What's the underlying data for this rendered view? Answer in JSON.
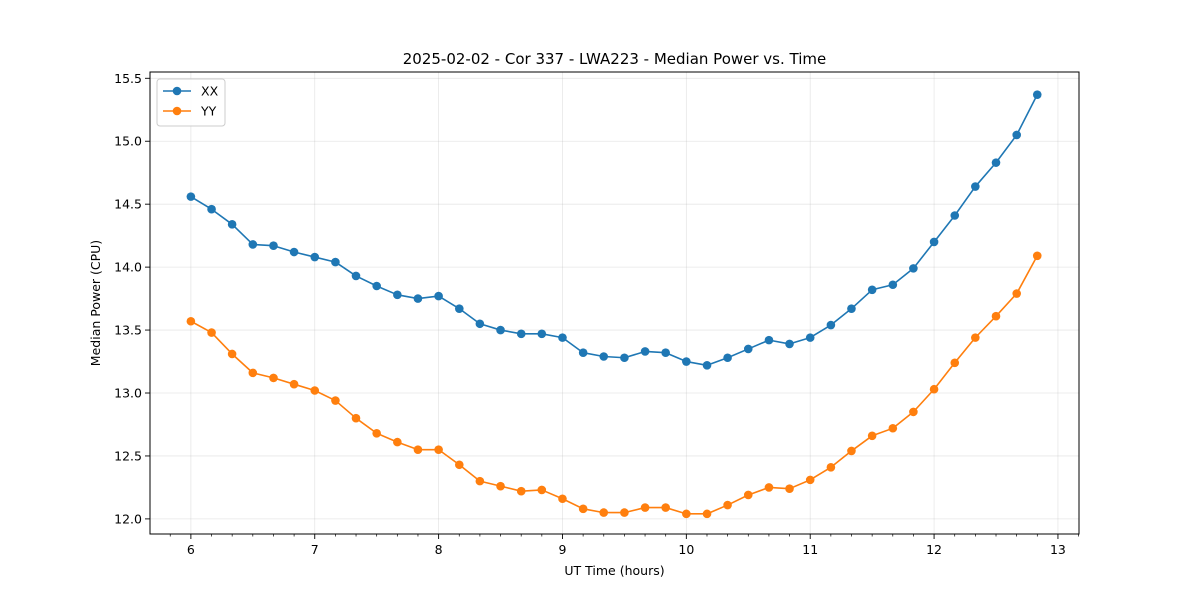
{
  "chart_data": {
    "type": "line",
    "title": "2025-02-02 - Cor 337 - LWA223 - Median Power vs. Time",
    "xlabel": "UT Time (hours)",
    "ylabel": "Median Power (CPU)",
    "xlim": [
      5.67,
      13.17
    ],
    "ylim": [
      11.88,
      15.55
    ],
    "xticks": [
      6,
      7,
      8,
      9,
      10,
      11,
      12,
      13
    ],
    "xtick_labels": [
      "6",
      "7",
      "8",
      "9",
      "10",
      "11",
      "12",
      "13"
    ],
    "yticks": [
      12.0,
      12.5,
      13.0,
      13.5,
      14.0,
      14.5,
      15.0,
      15.5
    ],
    "ytick_labels": [
      "12.0",
      "12.5",
      "13.0",
      "13.5",
      "14.0",
      "14.5",
      "15.0",
      "15.5"
    ],
    "grid": true,
    "legend_position": "top-left",
    "x": [
      6.0,
      6.167,
      6.333,
      6.5,
      6.667,
      6.833,
      7.0,
      7.167,
      7.333,
      7.5,
      7.667,
      7.833,
      8.0,
      8.167,
      8.333,
      8.5,
      8.667,
      8.833,
      9.0,
      9.167,
      9.333,
      9.5,
      9.667,
      9.833,
      10.0,
      10.167,
      10.333,
      10.5,
      10.667,
      10.833,
      11.0,
      11.167,
      11.333,
      11.5,
      11.667,
      11.833,
      12.0,
      12.167,
      12.333,
      12.5,
      12.667,
      12.833
    ],
    "series": [
      {
        "name": "XX",
        "color": "#1f77b4",
        "values": [
          14.56,
          14.46,
          14.34,
          14.18,
          14.17,
          14.12,
          14.08,
          14.04,
          13.93,
          13.85,
          13.78,
          13.75,
          13.77,
          13.67,
          13.55,
          13.5,
          13.47,
          13.47,
          13.44,
          13.32,
          13.29,
          13.28,
          13.33,
          13.32,
          13.25,
          13.22,
          13.28,
          13.35,
          13.42,
          13.39,
          13.44,
          13.54,
          13.67,
          13.82,
          13.86,
          13.99,
          14.2,
          14.41,
          14.64,
          14.83,
          15.05,
          15.37
        ]
      },
      {
        "name": "YY",
        "color": "#ff7f0e",
        "values": [
          13.57,
          13.48,
          13.31,
          13.16,
          13.12,
          13.07,
          13.02,
          12.94,
          12.8,
          12.68,
          12.61,
          12.55,
          12.55,
          12.43,
          12.3,
          12.26,
          12.22,
          12.23,
          12.16,
          12.08,
          12.05,
          12.05,
          12.09,
          12.09,
          12.04,
          12.04,
          12.11,
          12.19,
          12.25,
          12.24,
          12.31,
          12.41,
          12.54,
          12.66,
          12.72,
          12.85,
          13.03,
          13.24,
          13.44,
          13.61,
          13.79,
          14.09
        ]
      }
    ]
  }
}
